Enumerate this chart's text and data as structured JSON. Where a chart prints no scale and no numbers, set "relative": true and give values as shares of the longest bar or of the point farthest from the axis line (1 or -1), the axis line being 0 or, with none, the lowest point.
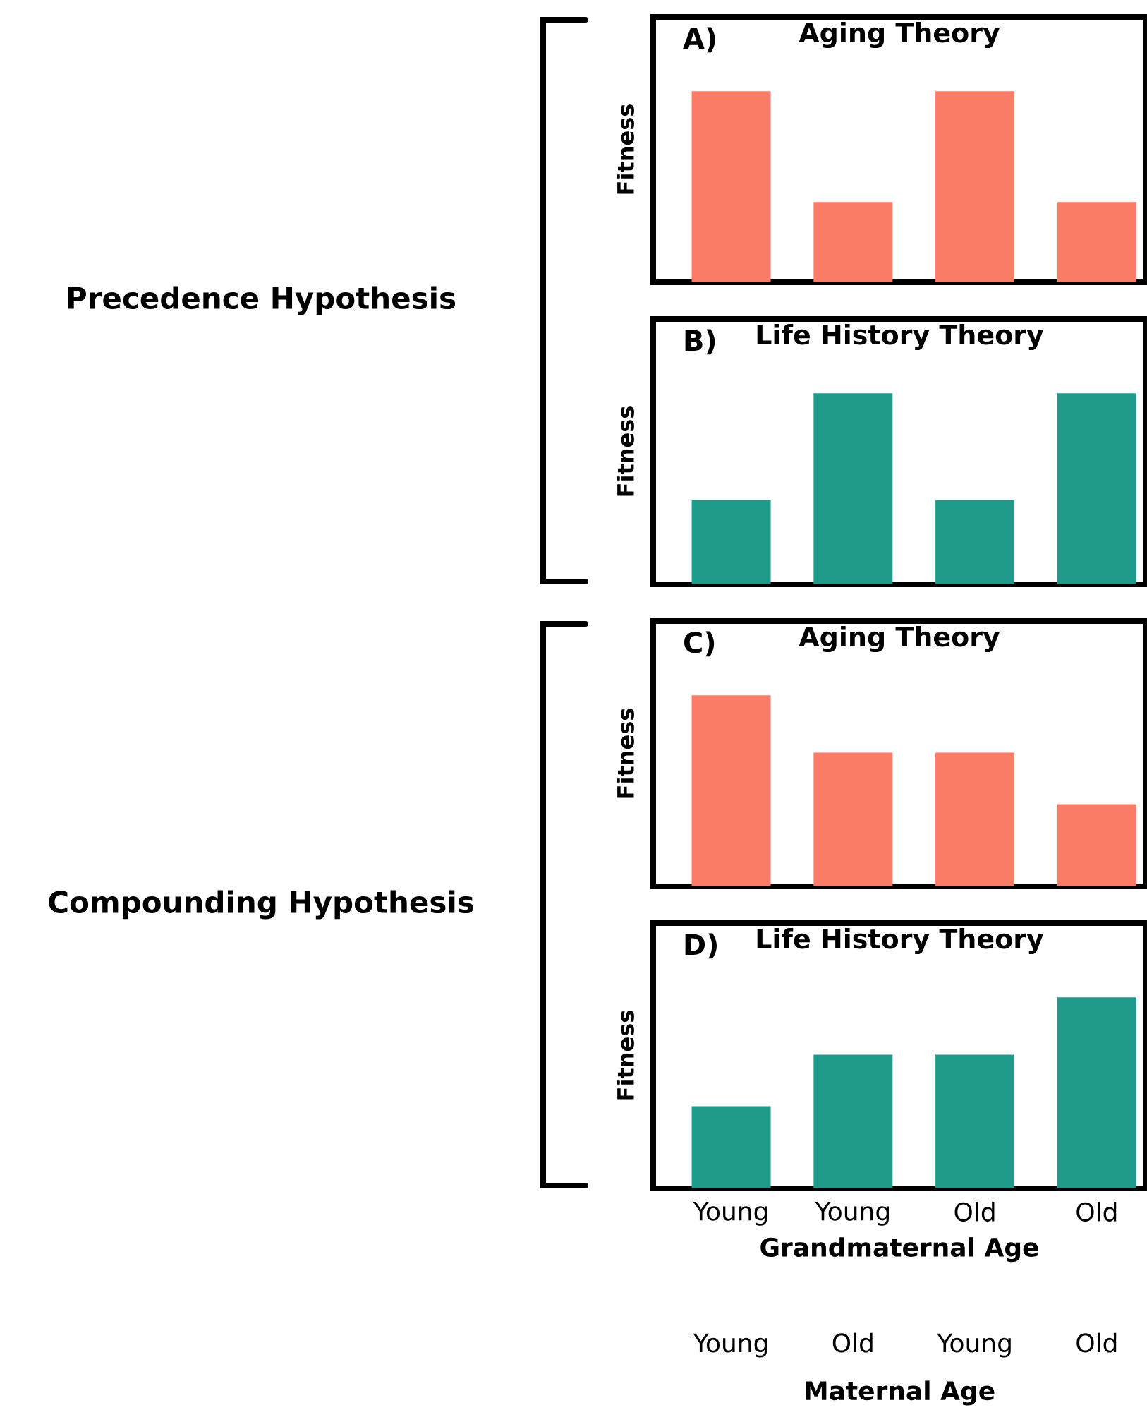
{
  "chart_data": [
    {
      "type": "bar",
      "title": "Aging Theory",
      "ylabel": "Fitness",
      "categories": [
        null,
        null,
        null,
        null
      ],
      "values": [
        1,
        0.42,
        1,
        0.42
      ],
      "color": "#fa7b66",
      "relative": true,
      "annotations": [
        "A)",
        "Precedence Hypothesis"
      ]
    },
    {
      "type": "bar",
      "title": "Life History Theory",
      "ylabel": "Fitness",
      "categories": [
        null,
        null,
        null,
        null
      ],
      "values": [
        0.44,
        1,
        0.44,
        1
      ],
      "color": "#1e9a8a",
      "relative": true,
      "annotations": [
        "B)"
      ]
    },
    {
      "type": "bar",
      "title": "Aging Theory",
      "ylabel": "Fitness",
      "categories": [
        null,
        null,
        null,
        null
      ],
      "values": [
        1,
        0.7,
        0.7,
        0.43
      ],
      "color": "#fa7b66",
      "relative": true,
      "annotations": [
        "C)",
        "Compounding Hypothesis"
      ]
    },
    {
      "type": "bar",
      "title": "Life History Theory",
      "ylabel": "Fitness",
      "xlabel": "Grandmaternal Age",
      "categories": [
        "Young",
        "Young",
        "Old",
        "Old"
      ],
      "values": [
        0.43,
        0.7,
        0.7,
        1
      ],
      "color": "#1e9a8a",
      "relative": true,
      "annotations": [
        "D)",
        "Young",
        "Old",
        "Young",
        "Old",
        "Maternal Age"
      ]
    }
  ]
}
